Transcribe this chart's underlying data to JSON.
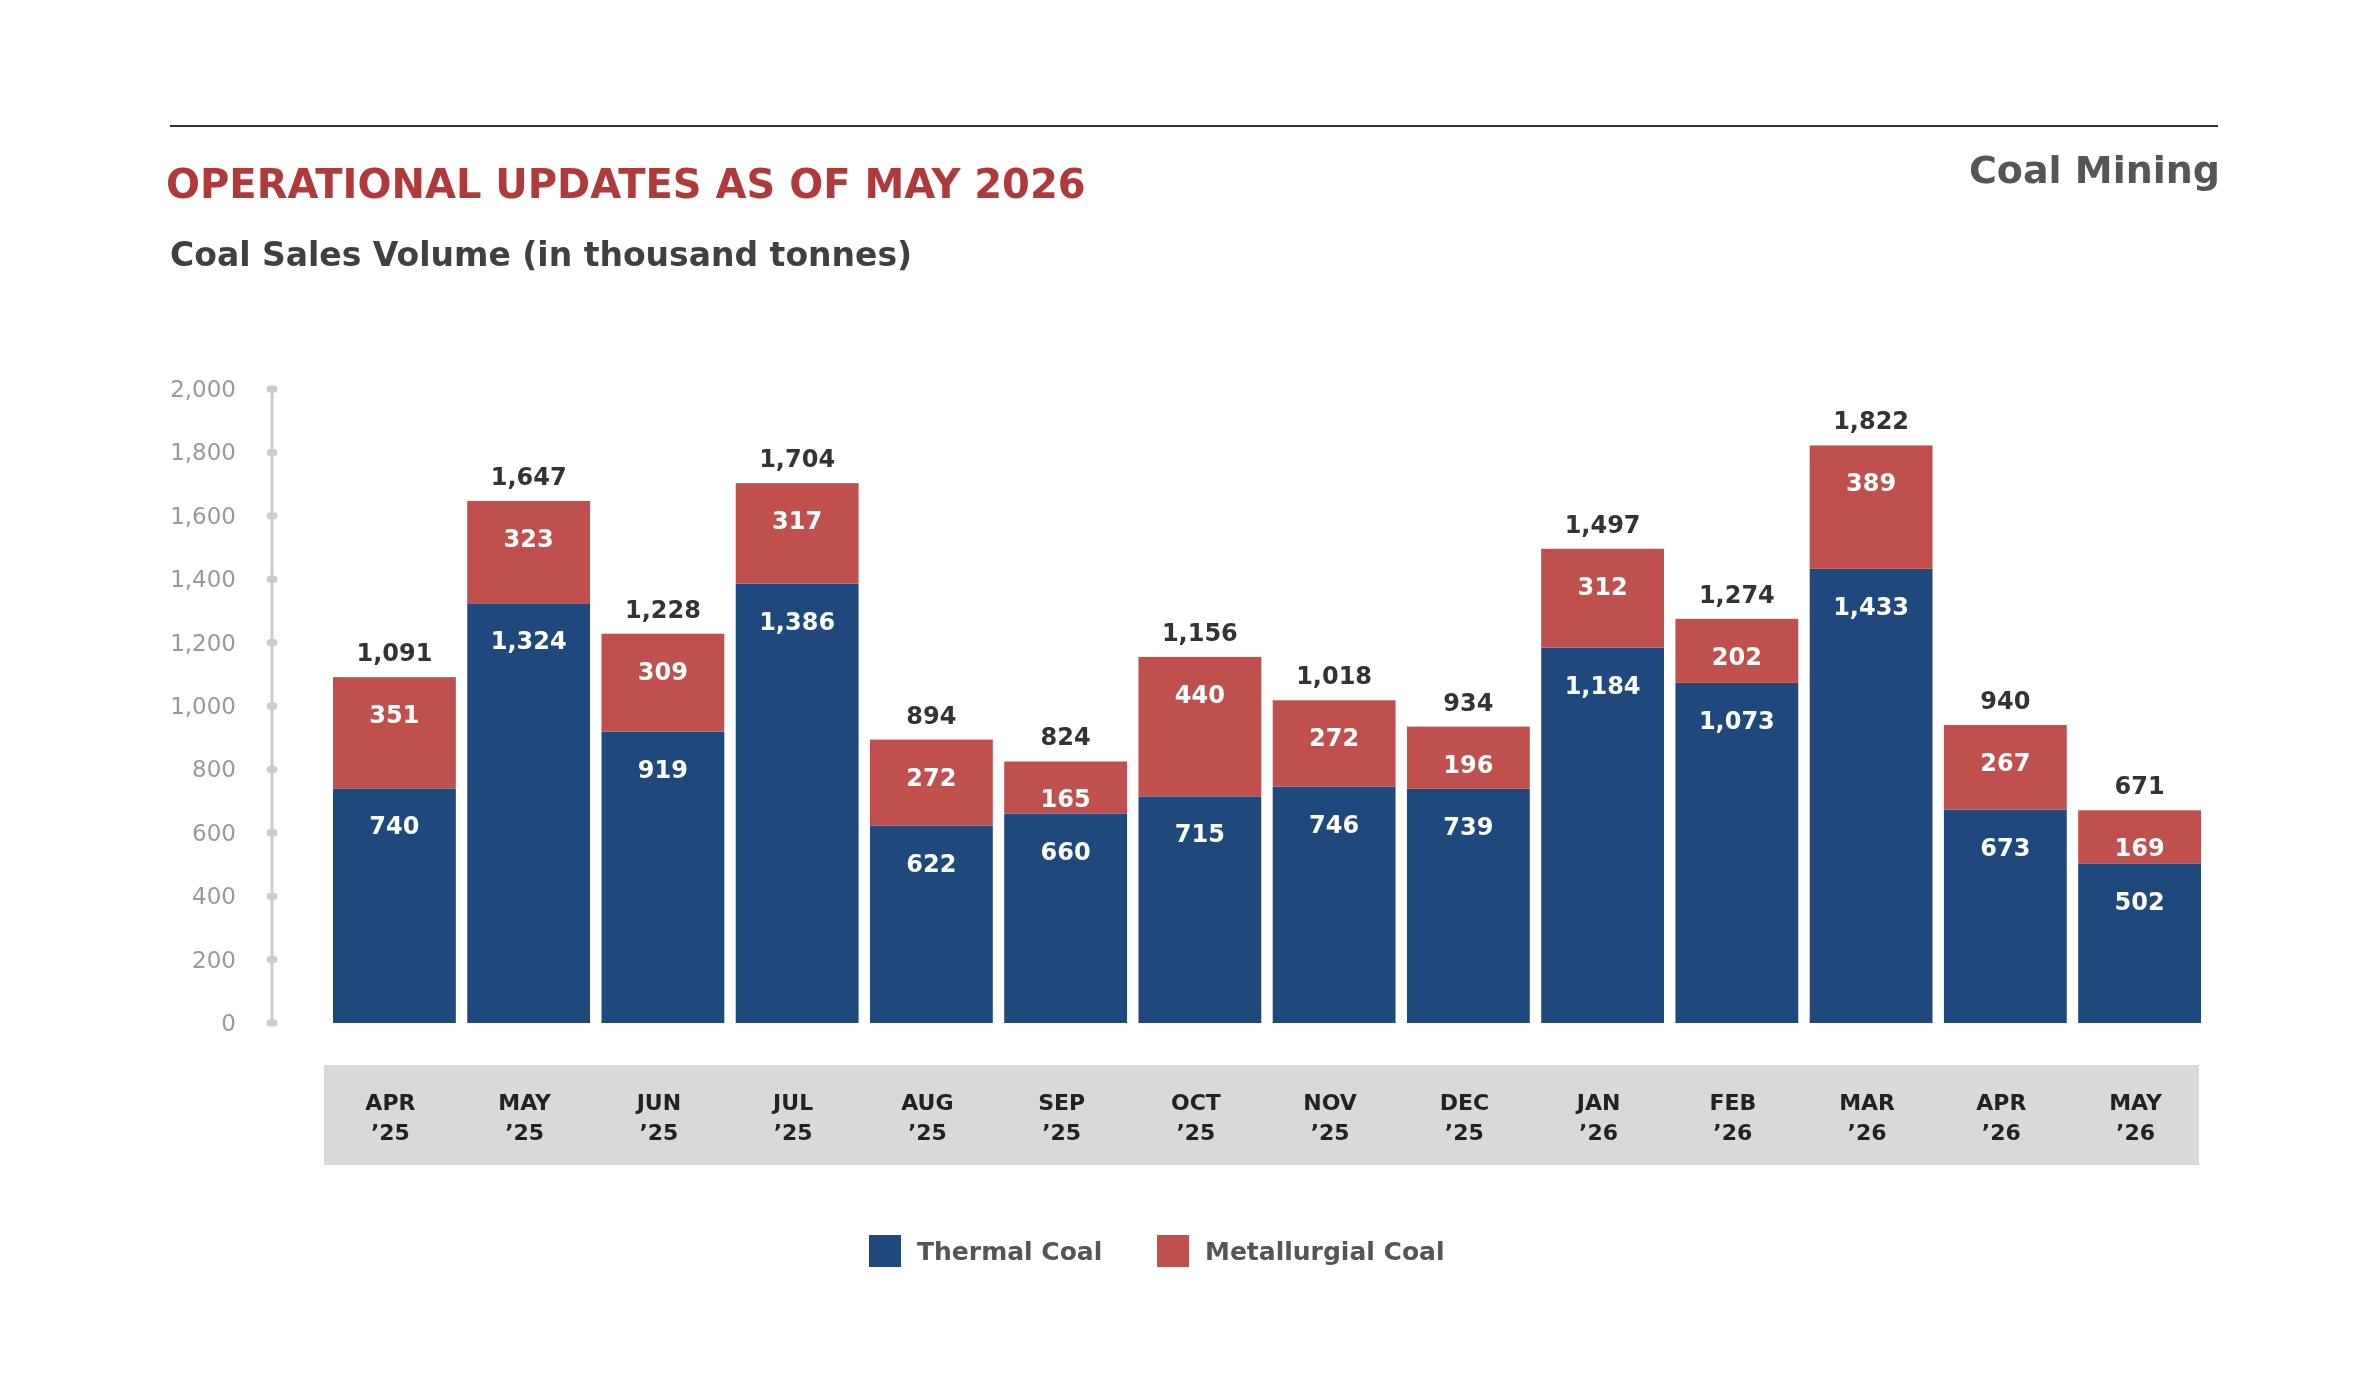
{
  "chart_data": {
    "type": "bar",
    "stacked": true,
    "title": "OPERATIONAL UPDATES AS OF MAY 2026",
    "subtitle": "Coal Sales Volume (in thousand tonnes)",
    "annotations": [
      "Coal Mining"
    ],
    "categories": [
      "APR ’25",
      "MAY ’25",
      "JUN ’25",
      "JUL ’25",
      "AUG ’25",
      "SEP ’25",
      "OCT ’25",
      "NOV ’25",
      "DEC ’25",
      "JAN ’26",
      "FEB ’26",
      "MAR ’26",
      "APR ’26",
      "MAY ’26"
    ],
    "series": [
      {
        "name": "Thermal Coal",
        "color": "#1f497d",
        "values": [
          740,
          1324,
          919,
          1386,
          622,
          660,
          715,
          746,
          739,
          1184,
          1073,
          1433,
          673,
          502
        ],
        "value_labels": [
          "740",
          "1,324",
          "919",
          "1,386",
          "622",
          "660",
          "715",
          "746",
          "739",
          "1,184",
          "1,073",
          "1,433",
          "673",
          "502"
        ]
      },
      {
        "name": "Metallurgial Coal",
        "color": "#c0504d",
        "values": [
          351,
          323,
          309,
          317,
          272,
          165,
          440,
          272,
          196,
          312,
          202,
          389,
          267,
          169
        ],
        "value_labels": [
          "351",
          "323",
          "309",
          "317",
          "272",
          "165",
          "440",
          "272",
          "196",
          "312",
          "202",
          "389",
          "267",
          "169"
        ]
      }
    ],
    "totals": [
      "1,091",
      "1,647",
      "1,228",
      "1,704",
      "894",
      "824",
      "1,156",
      "1,018",
      "934",
      "1,497",
      "1,274",
      "1,822",
      "940",
      "671"
    ],
    "ylim": [
      0,
      2000
    ],
    "yticks": [
      0,
      200,
      400,
      600,
      800,
      {
        "value": 1000,
        "label": "1,000"
      },
      {
        "value": 1200,
        "label": "1,200"
      },
      {
        "value": 1400,
        "label": "1,400"
      },
      {
        "value": 1600,
        "label": "1,600"
      },
      {
        "value": 1800,
        "label": "1,800"
      },
      {
        "value": 2000,
        "label": "2,000"
      }
    ],
    "grid": false,
    "legend": "bottom"
  }
}
